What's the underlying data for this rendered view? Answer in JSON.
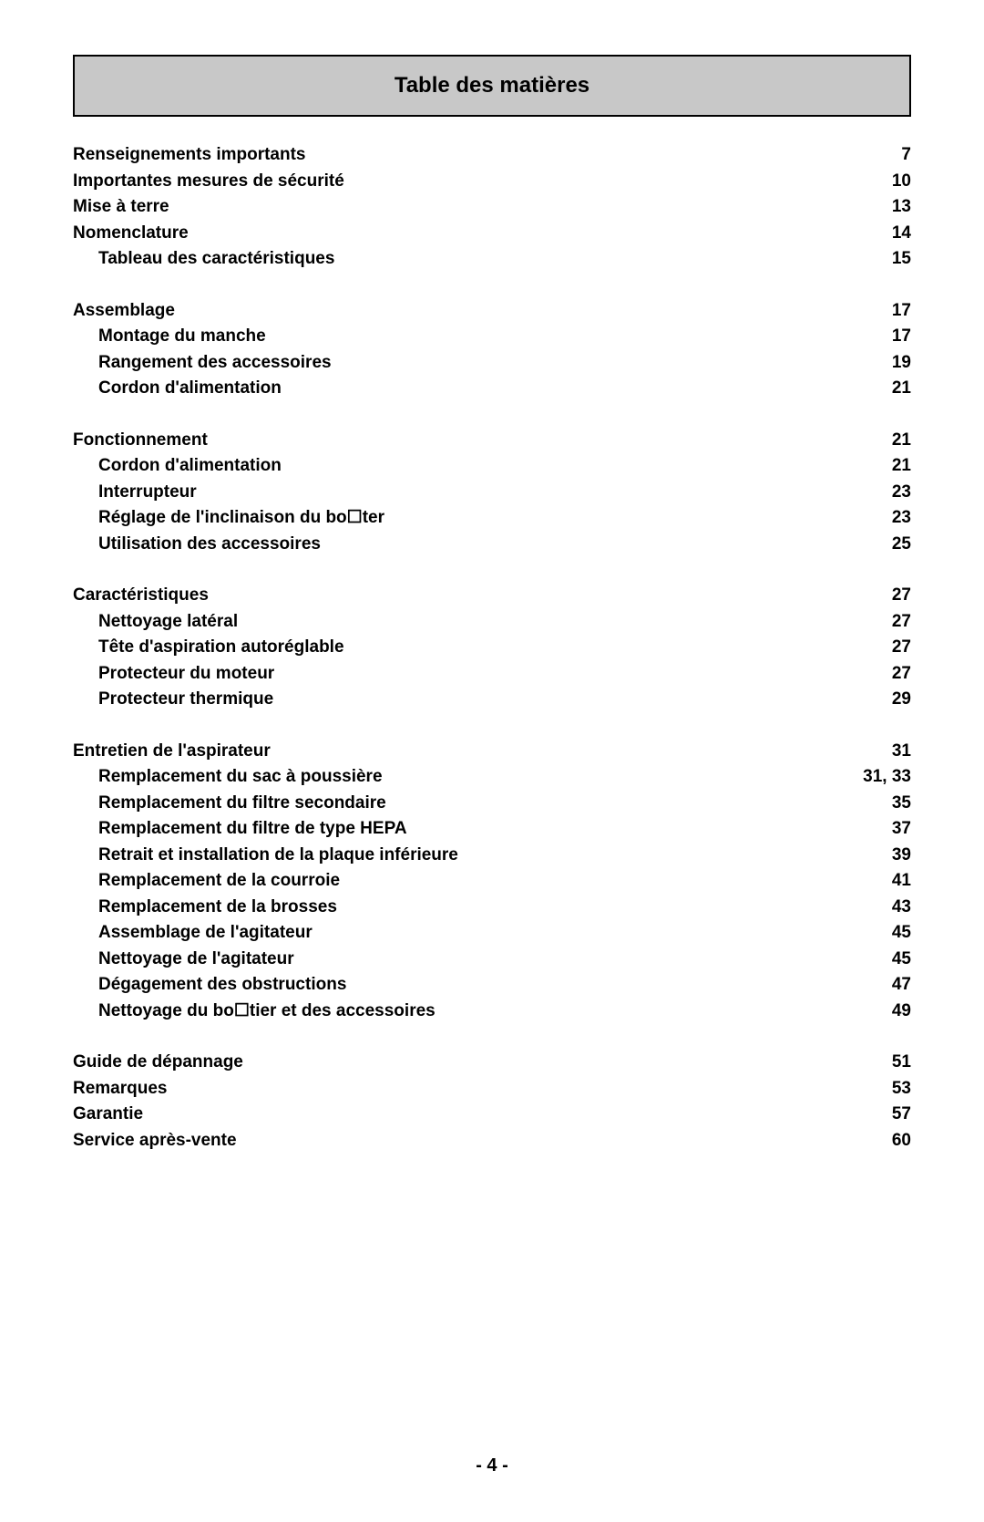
{
  "title": "Table des matières",
  "page_number": "- 4 -",
  "groups": [
    {
      "entries": [
        {
          "label": "Renseignements importants ",
          "page": "7",
          "indent": false
        },
        {
          "label": "Importantes mesures de sécurité",
          "page": "10",
          "indent": false
        },
        {
          "label": "Mise à terre",
          "page": "13",
          "indent": false
        },
        {
          "label": "Nomenclature",
          "page": "14",
          "indent": false
        },
        {
          "label": "Tableau des caractéristiques",
          "page": "15",
          "indent": true
        }
      ]
    },
    {
      "entries": [
        {
          "label": "Assemblage",
          "page": "17",
          "indent": false
        },
        {
          "label": "Montage du manche",
          "page": "17",
          "indent": true
        },
        {
          "label": "Rangement des accessoires",
          "page": "19",
          "indent": true
        },
        {
          "label": "Cordon d'alimentation ",
          "page": "21",
          "indent": true
        }
      ]
    },
    {
      "entries": [
        {
          "label": "Fonctionnement",
          "page": "21",
          "indent": false
        },
        {
          "label": "Cordon d'alimentation",
          "page": "21",
          "indent": true
        },
        {
          "label": "Interrupteur",
          "page": "23",
          "indent": true
        },
        {
          "label": "Réglage de l'inclinaison du bo☐ter",
          "page": "23",
          "indent": true
        },
        {
          "label": "Utilisation des accessoires",
          "page": "25",
          "indent": true
        }
      ]
    },
    {
      "entries": [
        {
          "label": "Caractéristiques",
          "page": "27",
          "indent": false
        },
        {
          "label": "Nettoyage latéral",
          "page": "27",
          "indent": true
        },
        {
          "label": "Tête d'aspiration autoréglable",
          "page": "27",
          "indent": true
        },
        {
          "label": "Protecteur du moteur",
          "page": "27",
          "indent": true
        },
        {
          "label": "Protecteur thermique",
          "page": "29",
          "indent": true
        }
      ]
    },
    {
      "entries": [
        {
          "label": "Entretien de l'aspirateur",
          "page": "31",
          "indent": false
        },
        {
          "label": "Remplacement du sac à poussière",
          "page": "31, 33",
          "indent": true
        },
        {
          "label": "Remplacement du filtre secondaire",
          "page": "35",
          "indent": true
        },
        {
          "label": "Remplacement du filtre de type HEPA",
          "page": "37",
          "indent": true
        },
        {
          "label": "Retrait et installation de la plaque inférieure",
          "page": "39",
          "indent": true
        },
        {
          "label": "Remplacement de la courroie",
          "page": "41",
          "indent": true
        },
        {
          "label": "Remplacement de la brosses",
          "page": "43",
          "indent": true
        },
        {
          "label": "Assemblage de l'agitateur",
          "page": "45",
          "indent": true
        },
        {
          "label": "Nettoyage de l'agitateur",
          "page": "45",
          "indent": true
        },
        {
          "label": "Dégagement des obstructions",
          "page": "47",
          "indent": true
        },
        {
          "label": "Nettoyage du bo☐tier et des accessoires",
          "page": "49",
          "indent": true
        }
      ]
    },
    {
      "entries": [
        {
          "label": "Guide de dépannage",
          "page": "51",
          "indent": false
        },
        {
          "label": "Remarques",
          "page": "53",
          "indent": false
        },
        {
          "label": "Garantie",
          "page": "57",
          "indent": false
        },
        {
          "label": "Service après-vente",
          "page": "60",
          "indent": false
        }
      ]
    }
  ]
}
